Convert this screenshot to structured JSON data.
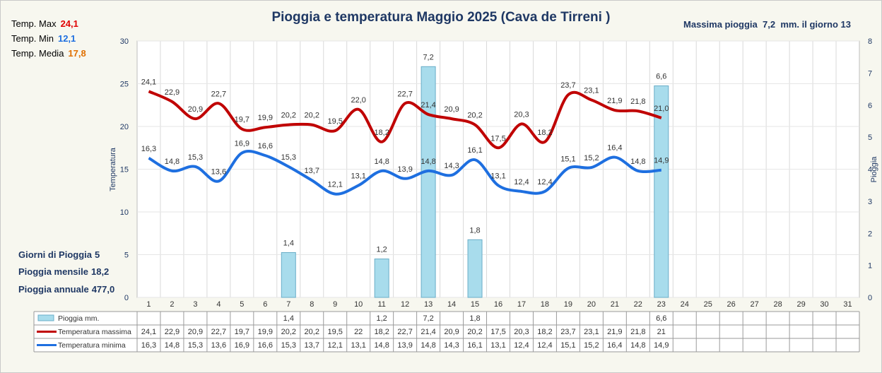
{
  "title": "Pioggia e temperatura Maggio 2025 (Cava de Tirreni )",
  "max_rain_note": {
    "prefix": "Massima pioggia",
    "value": "7,2",
    "suffix": "mm. il giorno 13"
  },
  "stats": {
    "tmax": {
      "label": "Temp. Max",
      "value": "24,1",
      "color": "#e00000"
    },
    "tmin": {
      "label": "Temp. Min",
      "value": "12,1",
      "color": "#1e6fe0"
    },
    "tmed": {
      "label": "Temp. Media",
      "value": "17,8",
      "color": "#e07000"
    }
  },
  "rain_summary": {
    "days": {
      "label": "Giorni di Pioggia",
      "value": "5"
    },
    "monthly": {
      "label": "Pioggia mensile",
      "value": "18,2"
    },
    "annual": {
      "label": "Pioggia annuale",
      "value": "477,0"
    }
  },
  "chart_data": {
    "type": "bar+line",
    "ylabel": "Temperatura",
    "y2label": "Pioggia",
    "ylim": [
      0,
      30
    ],
    "yticks": [
      0,
      5,
      10,
      15,
      20,
      25,
      30
    ],
    "y2lim": [
      0,
      8
    ],
    "y2ticks": [
      0,
      1,
      2,
      3,
      4,
      5,
      6,
      7,
      8
    ],
    "categories": [
      "1",
      "2",
      "3",
      "4",
      "5",
      "6",
      "7",
      "8",
      "9",
      "10",
      "11",
      "12",
      "13",
      "14",
      "15",
      "16",
      "17",
      "18",
      "19",
      "20",
      "21",
      "22",
      "23",
      "24",
      "25",
      "26",
      "27",
      "28",
      "29",
      "30",
      "31"
    ],
    "grid": true,
    "legend_placement": "table-below",
    "colors": {
      "rain_fill": "#a8dcec",
      "rain_stroke": "#6aaec8",
      "tmax": "#c00000",
      "tmin": "#1e6fe0"
    },
    "series": [
      {
        "name": "Pioggia mm.",
        "axis": "right",
        "kind": "bar",
        "values": [
          null,
          null,
          null,
          null,
          null,
          null,
          1.4,
          null,
          null,
          null,
          1.2,
          null,
          7.2,
          null,
          1.8,
          null,
          null,
          null,
          null,
          null,
          null,
          null,
          6.6,
          null,
          null,
          null,
          null,
          null,
          null,
          null,
          null
        ],
        "labels": [
          "",
          "",
          "",
          "",
          "",
          "",
          "1,4",
          "",
          "",
          "",
          "1,2",
          "",
          "7,2",
          "",
          "1,8",
          "",
          "",
          "",
          "",
          "",
          "",
          "",
          "6,6",
          "",
          "",
          "",
          "",
          "",
          "",
          "",
          ""
        ]
      },
      {
        "name": "Temperatura massima",
        "axis": "left",
        "kind": "line",
        "values": [
          24.1,
          22.9,
          20.9,
          22.7,
          19.7,
          19.9,
          20.2,
          20.2,
          19.5,
          22.0,
          18.2,
          22.7,
          21.4,
          20.9,
          20.2,
          17.5,
          20.3,
          18.2,
          23.7,
          23.1,
          21.9,
          21.8,
          21.0,
          null,
          null,
          null,
          null,
          null,
          null,
          null,
          null
        ],
        "labels": [
          "24,1",
          "22,9",
          "20,9",
          "22,7",
          "19,7",
          "19,9",
          "20,2",
          "20,2",
          "19,5",
          "22,0",
          "18,2",
          "22,7",
          "21,4",
          "20,9",
          "20,2",
          "17,5",
          "20,3",
          "18,2",
          "23,7",
          "23,1",
          "21,9",
          "21,8",
          "21,0",
          "",
          "",
          "",
          "",
          "",
          "",
          "",
          ""
        ],
        "table": [
          "24,1",
          "22,9",
          "20,9",
          "22,7",
          "19,7",
          "19,9",
          "20,2",
          "20,2",
          "19,5",
          "22",
          "18,2",
          "22,7",
          "21,4",
          "20,9",
          "20,2",
          "17,5",
          "20,3",
          "18,2",
          "23,7",
          "23,1",
          "21,9",
          "21,8",
          "21",
          "",
          "",
          "",
          "",
          "",
          "",
          "",
          ""
        ]
      },
      {
        "name": "Temperatura minima",
        "axis": "left",
        "kind": "line",
        "values": [
          16.3,
          14.8,
          15.3,
          13.6,
          16.9,
          16.6,
          15.3,
          13.7,
          12.1,
          13.1,
          14.8,
          13.9,
          14.8,
          14.3,
          16.1,
          13.1,
          12.4,
          12.4,
          15.1,
          15.2,
          16.4,
          14.8,
          14.9,
          null,
          null,
          null,
          null,
          null,
          null,
          null,
          null
        ],
        "labels": [
          "16,3",
          "14,8",
          "15,3",
          "13,6",
          "16,9",
          "16,6",
          "15,3",
          "13,7",
          "12,1",
          "13,1",
          "14,8",
          "13,9",
          "14,8",
          "14,3",
          "16,1",
          "13,1",
          "12,4",
          "12,4",
          "15,1",
          "15,2",
          "16,4",
          "14,8",
          "14,9",
          "",
          "",
          "",
          "",
          "",
          "",
          "",
          ""
        ],
        "table": [
          "16,3",
          "14,8",
          "15,3",
          "13,6",
          "16,9",
          "16,6",
          "15,3",
          "13,7",
          "12,1",
          "13,1",
          "14,8",
          "13,9",
          "14,8",
          "14,3",
          "16,1",
          "13,1",
          "12,4",
          "12,4",
          "15,1",
          "15,2",
          "16,4",
          "14,8",
          "14,9",
          "",
          "",
          "",
          "",
          "",
          "",
          "",
          ""
        ]
      }
    ]
  }
}
